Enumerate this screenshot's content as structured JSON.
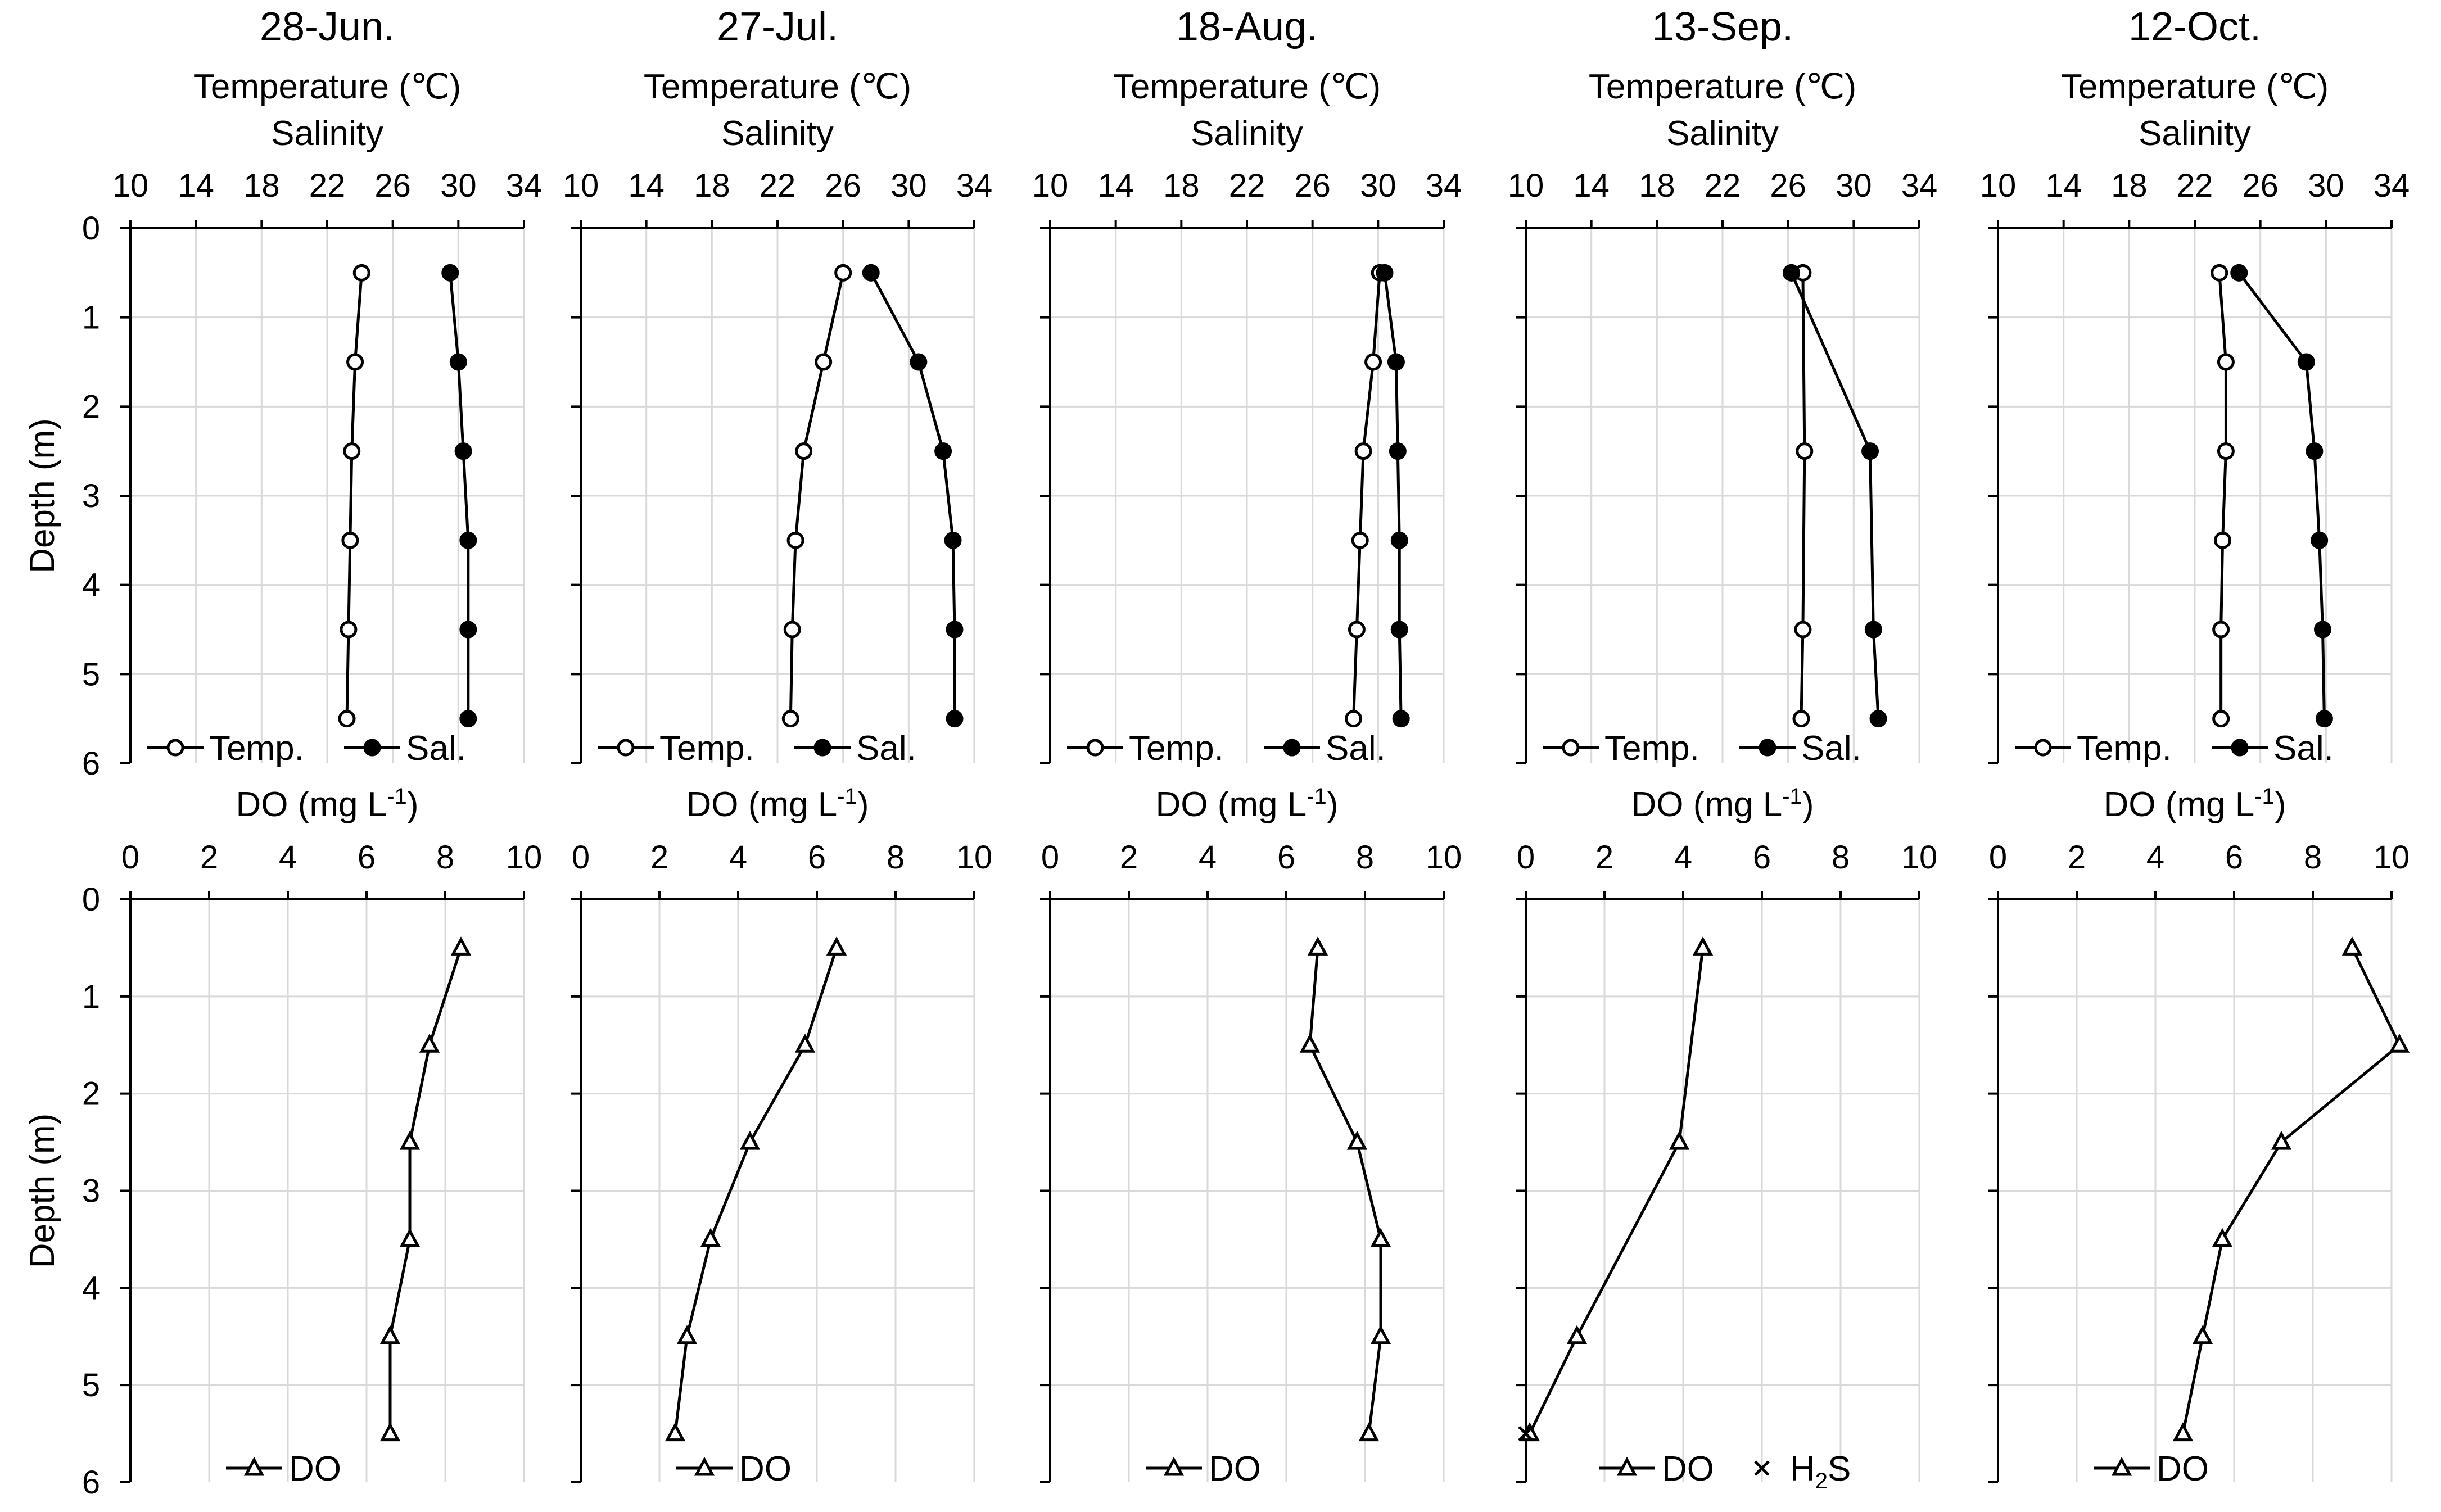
{
  "chart_data": {
    "type": "line",
    "depth_axis": {
      "label": "Depth (m)",
      "range": [
        0,
        6
      ],
      "ticks": [
        "0",
        "1",
        "2",
        "3",
        "4",
        "5",
        "6"
      ]
    },
    "top_axis": {
      "label1": "Temperature (℃)",
      "label2": "Salinity",
      "range": [
        10,
        34
      ],
      "ticks": [
        "10",
        "14",
        "18",
        "22",
        "26",
        "30",
        "34"
      ]
    },
    "bottom_axis": {
      "label": "DO (mg L",
      "label_sup": "-1",
      "label_end": ")",
      "range": [
        0,
        10
      ],
      "ticks": [
        "0",
        "2",
        "4",
        "6",
        "8",
        "10"
      ]
    },
    "legend": {
      "temp": "Temp.",
      "sal": "Sal.",
      "do": "DO",
      "h2s": "H",
      "h2s_sub": "2",
      "h2s_end": "S"
    },
    "panels": [
      {
        "title": "28-Jun.",
        "depth": [
          0.5,
          1.5,
          2.5,
          3.5,
          4.5,
          5.5
        ],
        "temperature": [
          24.1,
          23.7,
          23.5,
          23.4,
          23.3,
          23.2
        ],
        "salinity": [
          29.5,
          30.0,
          30.3,
          30.6,
          30.6,
          30.6
        ],
        "do": [
          8.4,
          7.6,
          7.1,
          7.1,
          6.6,
          6.6
        ],
        "h2s_depth": []
      },
      {
        "title": "27-Jul.",
        "depth": [
          0.5,
          1.5,
          2.5,
          3.5,
          4.5,
          5.5
        ],
        "temperature": [
          26.0,
          24.8,
          23.6,
          23.1,
          22.9,
          22.8
        ],
        "salinity": [
          27.7,
          30.6,
          32.1,
          32.7,
          32.8,
          32.8
        ],
        "do": [
          6.5,
          5.7,
          4.3,
          3.3,
          2.7,
          2.4
        ],
        "h2s_depth": []
      },
      {
        "title": "18-Aug.",
        "depth": [
          0.5,
          1.5,
          2.5,
          3.5,
          4.5,
          5.5
        ],
        "temperature": [
          30.1,
          29.7,
          29.1,
          28.9,
          28.7,
          28.5
        ],
        "salinity": [
          30.4,
          31.1,
          31.2,
          31.3,
          31.3,
          31.4
        ],
        "do": [
          6.8,
          6.6,
          7.8,
          8.4,
          8.4,
          8.1
        ],
        "h2s_depth": []
      },
      {
        "title": "13-Sep.",
        "depth": [
          0.5,
          2.5,
          4.5,
          5.5
        ],
        "temperature": [
          26.9,
          27.0,
          26.9,
          26.8
        ],
        "salinity": [
          26.2,
          31.0,
          31.2,
          31.5
        ],
        "do": [
          4.5,
          3.9,
          1.3,
          0.1
        ],
        "h2s_depth": [
          5.5
        ]
      },
      {
        "title": "12-Oct.",
        "depth": [
          0.5,
          1.5,
          2.5,
          3.5,
          4.5,
          5.5
        ],
        "temperature": [
          23.5,
          23.9,
          23.9,
          23.7,
          23.6,
          23.6
        ],
        "salinity": [
          24.7,
          28.8,
          29.3,
          29.6,
          29.8,
          29.9
        ],
        "do": [
          9.0,
          10.2,
          7.2,
          5.7,
          5.2,
          4.7
        ],
        "h2s_depth": []
      }
    ]
  }
}
